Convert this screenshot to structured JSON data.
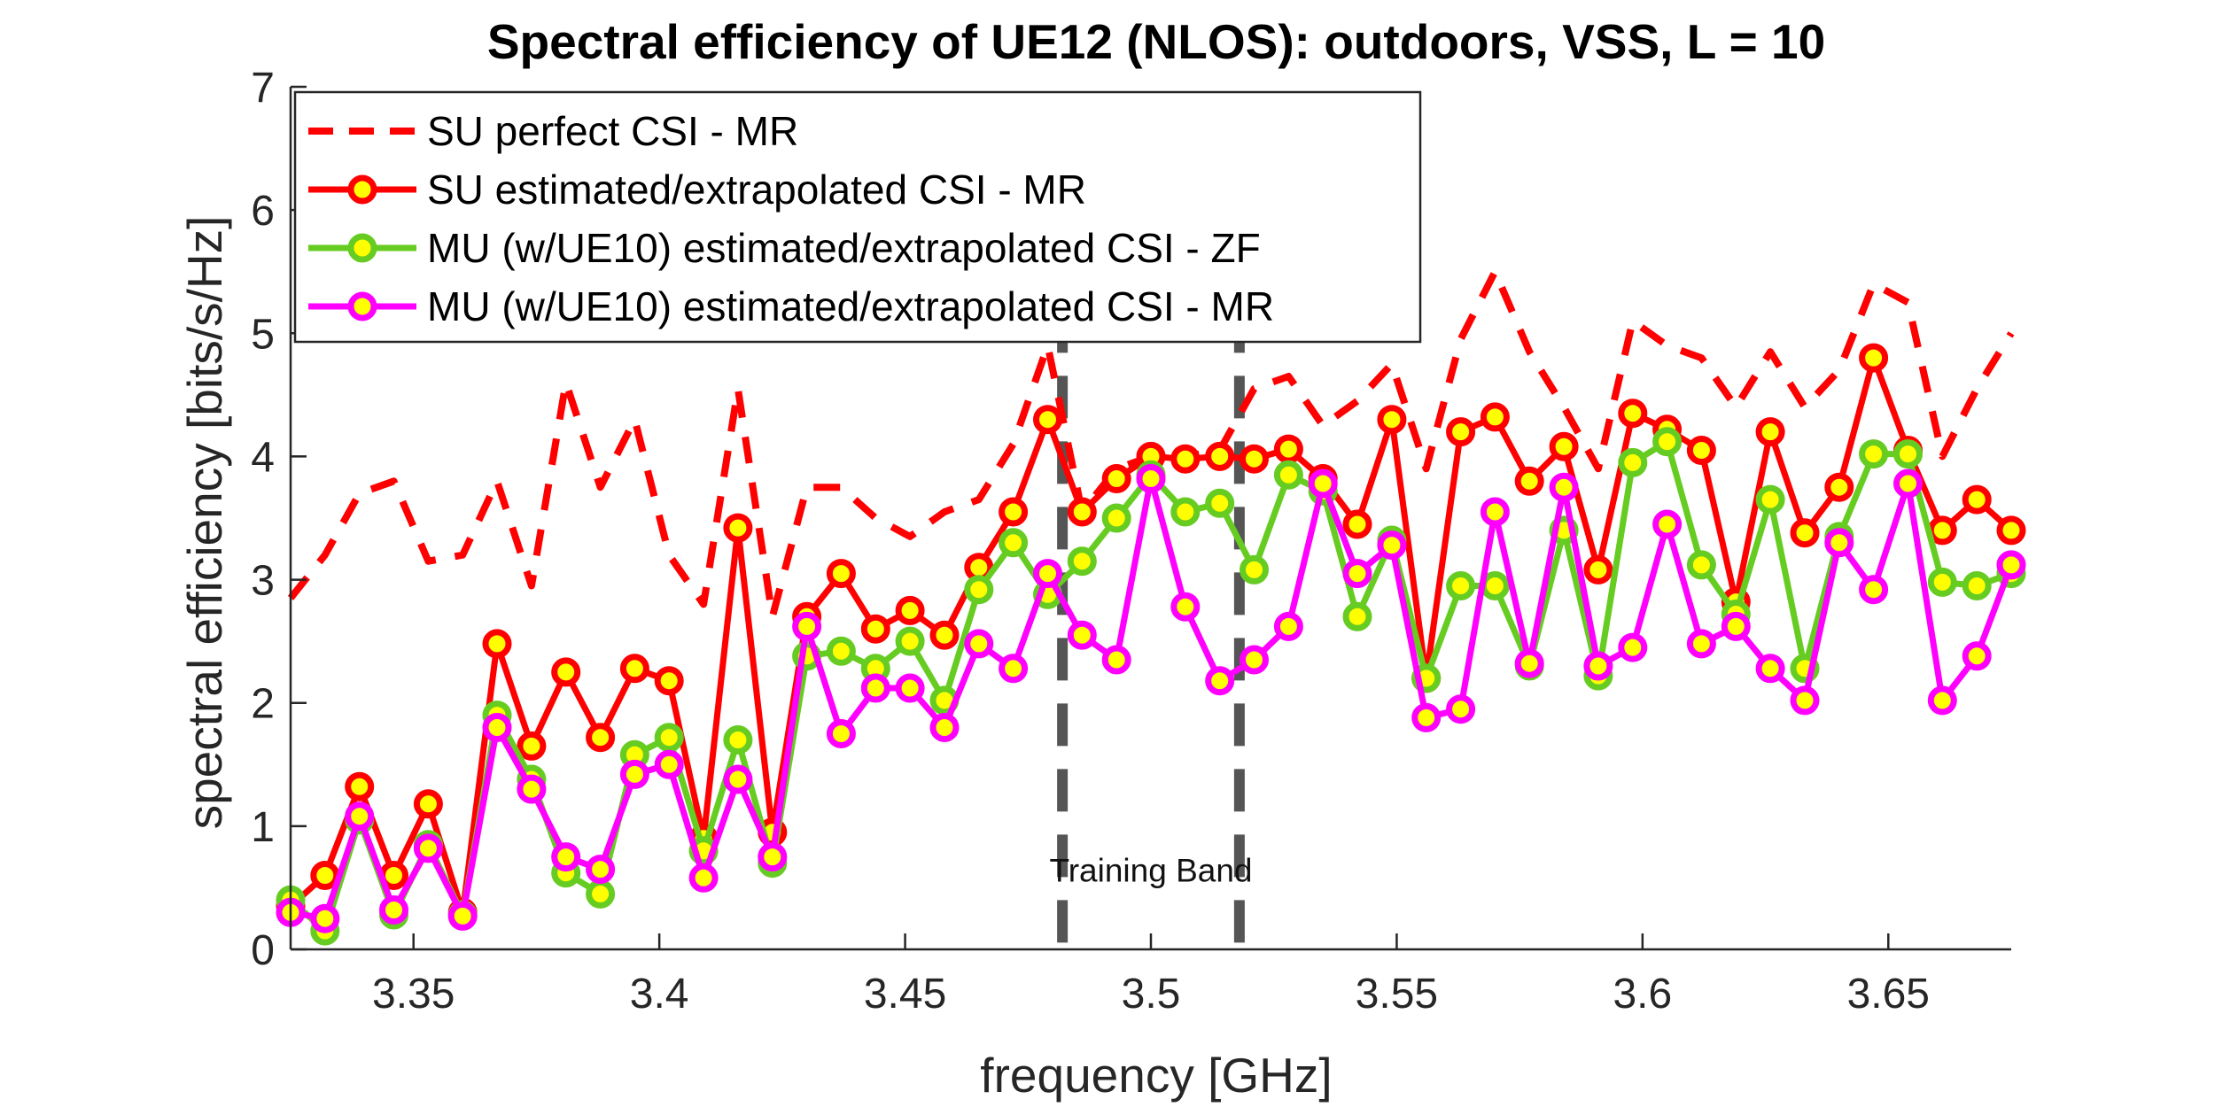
{
  "chart_data": {
    "type": "line",
    "title": "Spectral efficiency of UE12 (NLOS): outdoors, VSS, L = 10",
    "xlabel": "frequency [GHz]",
    "ylabel": "spectral efficiency [bits/s/Hz]",
    "xlim": [
      3.325,
      3.675
    ],
    "ylim": [
      0,
      7
    ],
    "xticks": [
      3.35,
      3.4,
      3.45,
      3.5,
      3.55,
      3.6,
      3.65
    ],
    "xtick_labels": [
      "3.35",
      "3.4",
      "3.45",
      "3.5",
      "3.55",
      "3.6",
      "3.65"
    ],
    "yticks": [
      0,
      1,
      2,
      3,
      4,
      5,
      6,
      7
    ],
    "ytick_labels": [
      "0",
      "1",
      "2",
      "3",
      "4",
      "5",
      "6",
      "7"
    ],
    "grid": false,
    "legend_position": "top-left",
    "x": [
      3.325,
      3.332,
      3.339,
      3.346,
      3.353,
      3.36,
      3.367,
      3.374,
      3.381,
      3.388,
      3.395,
      3.402,
      3.409,
      3.416,
      3.423,
      3.43,
      3.437,
      3.444,
      3.451,
      3.458,
      3.465,
      3.472,
      3.479,
      3.486,
      3.493,
      3.5,
      3.507,
      3.514,
      3.521,
      3.528,
      3.535,
      3.542,
      3.549,
      3.556,
      3.563,
      3.57,
      3.577,
      3.584,
      3.591,
      3.598,
      3.605,
      3.612,
      3.619,
      3.626,
      3.633,
      3.64,
      3.647,
      3.654,
      3.661,
      3.668,
      3.675
    ],
    "series": [
      {
        "name": "SU perfect CSI - MR",
        "color": "#ff0000",
        "style": "dashed",
        "marker": false,
        "values": [
          2.85,
          3.2,
          3.7,
          3.8,
          3.15,
          3.2,
          3.8,
          2.95,
          4.6,
          3.75,
          4.3,
          3.2,
          2.8,
          4.55,
          2.7,
          3.75,
          3.75,
          3.5,
          3.35,
          3.55,
          3.65,
          4.1,
          4.9,
          3.55,
          3.9,
          4.0,
          4.0,
          4.05,
          4.55,
          4.65,
          4.25,
          4.45,
          4.75,
          3.9,
          4.95,
          5.5,
          4.85,
          4.4,
          3.9,
          5.1,
          4.9,
          4.8,
          4.4,
          4.85,
          4.4,
          4.7,
          5.4,
          5.25,
          4.0,
          4.55,
          5.0
        ]
      },
      {
        "name": "SU estimated/extrapolated CSI - MR",
        "color": "#ff0000",
        "style": "solid",
        "marker": true,
        "values": [
          0.35,
          0.6,
          1.32,
          0.6,
          1.18,
          0.3,
          2.48,
          1.65,
          2.25,
          1.72,
          2.28,
          2.18,
          0.9,
          3.42,
          0.95,
          2.7,
          3.05,
          2.6,
          2.75,
          2.55,
          3.1,
          3.55,
          4.3,
          3.55,
          3.82,
          4.0,
          3.98,
          4.0,
          3.98,
          4.06,
          3.82,
          3.45,
          4.3,
          2.2,
          4.2,
          4.32,
          3.8,
          4.08,
          3.08,
          4.35,
          4.22,
          4.05,
          2.82,
          4.2,
          3.38,
          3.75,
          4.8,
          4.05,
          3.4,
          3.65,
          3.4
        ]
      },
      {
        "name": "MU (w/UE10) estimated/extrapolated CSI - ZF",
        "color": "#66cc22",
        "style": "solid",
        "marker": true,
        "values": [
          0.4,
          0.15,
          1.05,
          0.28,
          0.85,
          0.28,
          1.9,
          1.38,
          0.62,
          0.45,
          1.58,
          1.72,
          0.8,
          1.7,
          0.7,
          2.38,
          2.42,
          2.28,
          2.5,
          2.02,
          2.92,
          3.3,
          2.88,
          3.15,
          3.5,
          3.85,
          3.55,
          3.62,
          3.08,
          3.85,
          3.72,
          2.7,
          3.32,
          2.2,
          2.95,
          2.95,
          2.3,
          3.4,
          2.22,
          3.95,
          4.12,
          3.12,
          2.72,
          3.65,
          2.28,
          3.35,
          4.02,
          4.02,
          2.98,
          2.95,
          3.05
        ]
      },
      {
        "name": "MU (w/UE10) estimated/extrapolated CSI - MR",
        "color": "#ff00ff",
        "style": "solid",
        "marker": true,
        "values": [
          0.3,
          0.25,
          1.08,
          0.32,
          0.82,
          0.27,
          1.8,
          1.3,
          0.75,
          0.65,
          1.42,
          1.5,
          0.58,
          1.38,
          0.75,
          2.62,
          1.75,
          2.12,
          2.12,
          1.8,
          2.48,
          2.28,
          3.05,
          2.55,
          2.35,
          3.82,
          2.78,
          2.18,
          2.35,
          2.62,
          3.78,
          3.05,
          3.28,
          1.88,
          1.95,
          3.55,
          2.32,
          3.75,
          2.3,
          2.45,
          3.45,
          2.48,
          2.62,
          2.28,
          2.02,
          3.3,
          2.92,
          3.78,
          2.02,
          2.38,
          3.12
        ]
      }
    ],
    "vertical_lines": [
      3.482,
      3.518
    ],
    "annotation": {
      "text": "Training Band",
      "x": 3.5,
      "y": 0.55
    }
  }
}
